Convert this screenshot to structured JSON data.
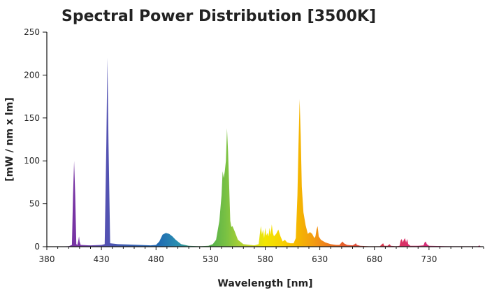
{
  "chart_data": {
    "type": "area",
    "title": "Spectral Power Distribution [3500K]",
    "xlabel": "Wavelength [nm]",
    "ylabel": "[mW / nm x lm]",
    "xlim": [
      380,
      780
    ],
    "ylim": [
      0,
      250
    ],
    "x_ticks": [
      380,
      430,
      480,
      530,
      580,
      630,
      680,
      730
    ],
    "y_ticks": [
      0,
      50,
      100,
      150,
      200,
      250
    ],
    "grid": false,
    "legend": "none",
    "fill": "spectral wavelength colors",
    "series": [
      {
        "points": [
          [
            380,
            0
          ],
          [
            400,
            0.5
          ],
          [
            403,
            2
          ],
          [
            404,
            60
          ],
          [
            405,
            100
          ],
          [
            406,
            60
          ],
          [
            407,
            3
          ],
          [
            408,
            2
          ],
          [
            409,
            8
          ],
          [
            409.5,
            12
          ],
          [
            410,
            6
          ],
          [
            411,
            2
          ],
          [
            420,
            1.5
          ],
          [
            430,
            2
          ],
          [
            433,
            3
          ],
          [
            434.5,
            120
          ],
          [
            435.5,
            220
          ],
          [
            436.5,
            120
          ],
          [
            438,
            4
          ],
          [
            445,
            3
          ],
          [
            455,
            2.5
          ],
          [
            465,
            2
          ],
          [
            475,
            1.5
          ],
          [
            480,
            2
          ],
          [
            483,
            6
          ],
          [
            486,
            14
          ],
          [
            489,
            16
          ],
          [
            492,
            15
          ],
          [
            495,
            12
          ],
          [
            498,
            8
          ],
          [
            503,
            3
          ],
          [
            510,
            1
          ],
          [
            520,
            0.5
          ],
          [
            528,
            1
          ],
          [
            532,
            3
          ],
          [
            535,
            8
          ],
          [
            538,
            30
          ],
          [
            540,
            60
          ],
          [
            541,
            88
          ],
          [
            542,
            80
          ],
          [
            543,
            88
          ],
          [
            544,
            100
          ],
          [
            545,
            138
          ],
          [
            546,
            110
          ],
          [
            547,
            70
          ],
          [
            548,
            30
          ],
          [
            549,
            23
          ],
          [
            550,
            24
          ],
          [
            552,
            18
          ],
          [
            555,
            8
          ],
          [
            560,
            3
          ],
          [
            570,
            1.5
          ],
          [
            574,
            3
          ],
          [
            575,
            14
          ],
          [
            576,
            24
          ],
          [
            577,
            14
          ],
          [
            578,
            20
          ],
          [
            579,
            10
          ],
          [
            580,
            22
          ],
          [
            581,
            13
          ],
          [
            582,
            16
          ],
          [
            583,
            12
          ],
          [
            584,
            22
          ],
          [
            585,
            14
          ],
          [
            586,
            26
          ],
          [
            587,
            16
          ],
          [
            588,
            12
          ],
          [
            590,
            15
          ],
          [
            592,
            20
          ],
          [
            594,
            12
          ],
          [
            596,
            6
          ],
          [
            598,
            8
          ],
          [
            600,
            5
          ],
          [
            603,
            4
          ],
          [
            606,
            4
          ],
          [
            608,
            10
          ],
          [
            609.5,
            60
          ],
          [
            610.5,
            120
          ],
          [
            611.5,
            172
          ],
          [
            612.5,
            130
          ],
          [
            613.5,
            70
          ],
          [
            615,
            40
          ],
          [
            617,
            25
          ],
          [
            619,
            15
          ],
          [
            621,
            17
          ],
          [
            623,
            15
          ],
          [
            625,
            10
          ],
          [
            626,
            12
          ],
          [
            627,
            20
          ],
          [
            628,
            24
          ],
          [
            629,
            12
          ],
          [
            631,
            8
          ],
          [
            635,
            5
          ],
          [
            640,
            3
          ],
          [
            645,
            2
          ],
          [
            648,
            2
          ],
          [
            650,
            5
          ],
          [
            651,
            6
          ],
          [
            652,
            4
          ],
          [
            655,
            2
          ],
          [
            660,
            1.5
          ],
          [
            662,
            3
          ],
          [
            663,
            4
          ],
          [
            664,
            2
          ],
          [
            667,
            1
          ],
          [
            675,
            0.5
          ],
          [
            685,
            0.5
          ],
          [
            687,
            3
          ],
          [
            688,
            4
          ],
          [
            689,
            1
          ],
          [
            692,
            1
          ],
          [
            694,
            3
          ],
          [
            695,
            1
          ],
          [
            700,
            0.5
          ],
          [
            703,
            1
          ],
          [
            704,
            7
          ],
          [
            705,
            9
          ],
          [
            706,
            5
          ],
          [
            707,
            8
          ],
          [
            708,
            10
          ],
          [
            709,
            5
          ],
          [
            710,
            9
          ],
          [
            711,
            3
          ],
          [
            713,
            1
          ],
          [
            720,
            1
          ],
          [
            725,
            1.5
          ],
          [
            726,
            5
          ],
          [
            727,
            6
          ],
          [
            728,
            3
          ],
          [
            730,
            1
          ],
          [
            750,
            0.5
          ],
          [
            775,
            0.5
          ],
          [
            776,
            1.5
          ],
          [
            777,
            0.5
          ],
          [
            780,
            0
          ]
        ]
      }
    ]
  }
}
